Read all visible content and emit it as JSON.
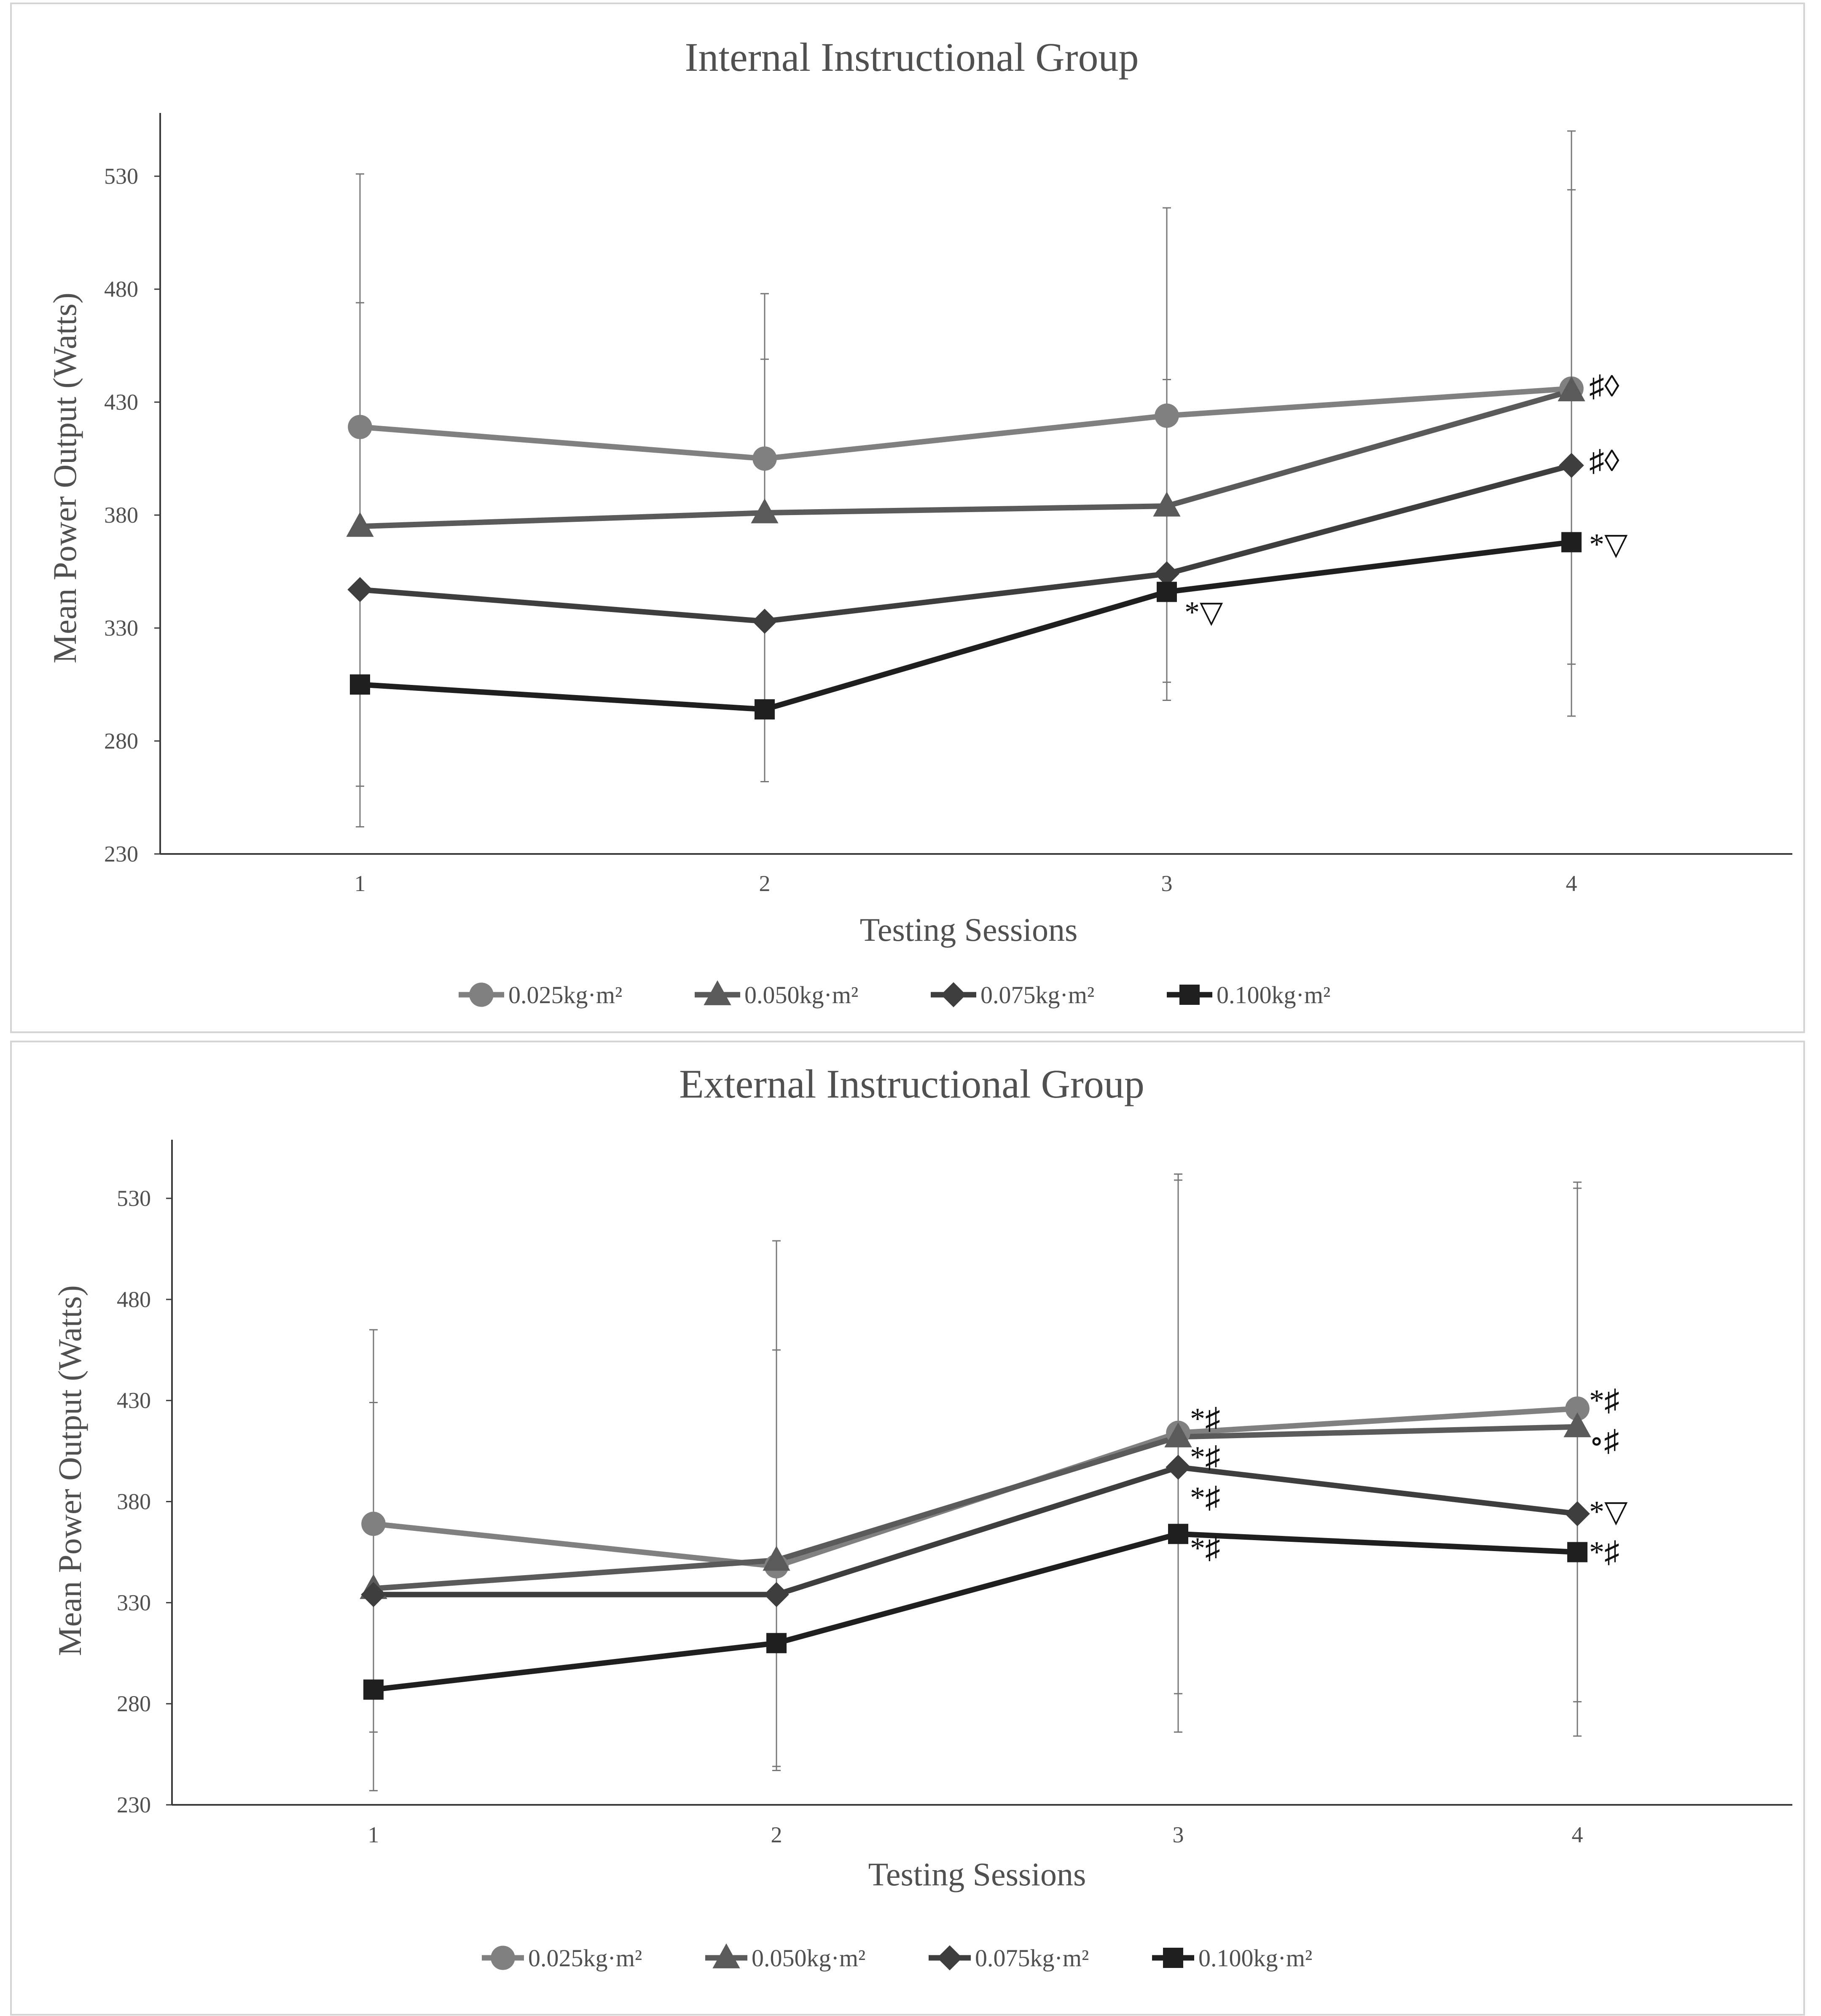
{
  "figure": {
    "colors": {
      "s1": "#808080",
      "s2": "#5a5a5a",
      "s3": "#3e3e3e",
      "s4": "#1f1f1f",
      "axis": "#3a3a3a",
      "text": "#505050",
      "border": "#d4d4d4"
    }
  },
  "chart_data": [
    {
      "type": "line",
      "title": "Internal Instructional Group",
      "xlabel": "Testing Sessions",
      "ylabel": "Mean Power Output (Watts)",
      "categories": [
        "1",
        "2",
        "3",
        "4"
      ],
      "yticks": [
        "230",
        "280",
        "330",
        "380",
        "430",
        "480",
        "530"
      ],
      "ylim": [
        230,
        558
      ],
      "legend_position": "bottom",
      "series": [
        {
          "name": "0.025kg·m²",
          "marker": "circle",
          "values": [
            419,
            405,
            424,
            436
          ],
          "err_upper": [
            531,
            478,
            516,
            550
          ],
          "err_lower": [
            null,
            null,
            306,
            314
          ]
        },
        {
          "name": "0.050kg·m²",
          "marker": "triangle",
          "values": [
            375,
            381,
            384,
            435
          ],
          "err_upper": [
            474,
            449,
            440,
            524
          ],
          "err_lower": [
            null,
            null,
            null,
            null
          ]
        },
        {
          "name": "0.075kg·m²",
          "marker": "diamond",
          "values": [
            347,
            333,
            354,
            402
          ],
          "err_upper": [
            null,
            null,
            null,
            null
          ],
          "err_lower": [
            260,
            262,
            298,
            291
          ]
        },
        {
          "name": "0.100kg·m²",
          "marker": "square",
          "values": [
            305,
            294,
            346,
            368
          ],
          "err_upper": [
            null,
            null,
            null,
            null
          ],
          "err_lower": [
            242,
            null,
            null,
            null
          ]
        }
      ],
      "annotations": [
        {
          "session": "4",
          "value": 437,
          "text": "♯◊"
        },
        {
          "session": "4",
          "value": 404,
          "text": "♯◊"
        },
        {
          "session": "4",
          "value": 367,
          "text": "*▽"
        },
        {
          "session": "3",
          "value": 337,
          "text": "*▽"
        }
      ]
    },
    {
      "type": "line",
      "title": "External Instructional Group",
      "xlabel": "Testing Sessions",
      "ylabel": "Mean Power Output (Watts)",
      "categories": [
        "1",
        "2",
        "3",
        "4"
      ],
      "yticks": [
        "230",
        "280",
        "330",
        "380",
        "430",
        "480",
        "530"
      ],
      "ylim": [
        230,
        559
      ],
      "legend_position": "bottom",
      "series": [
        {
          "name": "0.025kg·m²",
          "marker": "circle",
          "values": [
            369,
            348,
            414,
            426
          ],
          "err_upper": [
            465,
            509,
            542,
            538
          ],
          "err_lower": [
            266,
            247,
            285,
            281
          ]
        },
        {
          "name": "0.050kg·m²",
          "marker": "triangle",
          "values": [
            337,
            351,
            412,
            417
          ],
          "err_upper": [
            429,
            455,
            539,
            535
          ],
          "err_lower": [
            null,
            249,
            null,
            null
          ]
        },
        {
          "name": "0.075kg·m²",
          "marker": "diamond",
          "values": [
            334,
            334,
            397,
            374
          ],
          "err_upper": [
            null,
            null,
            null,
            null
          ],
          "err_lower": [
            null,
            null,
            266,
            264
          ]
        },
        {
          "name": "0.100kg·m²",
          "marker": "square",
          "values": [
            287,
            310,
            364,
            355
          ],
          "err_upper": [
            null,
            null,
            null,
            null
          ],
          "err_lower": [
            237,
            null,
            null,
            null
          ]
        }
      ],
      "annotations": [
        {
          "session": "3",
          "value": 421,
          "text": "*♯"
        },
        {
          "session": "4",
          "value": 430,
          "text": "*♯"
        },
        {
          "session": "4",
          "value": 410,
          "text": "∘♯"
        },
        {
          "session": "3",
          "value": 402,
          "text": "*♯"
        },
        {
          "session": "3",
          "value": 382,
          "text": "*♯"
        },
        {
          "session": "4",
          "value": 375,
          "text": "*▽"
        },
        {
          "session": "3",
          "value": 357,
          "text": "*♯"
        },
        {
          "session": "4",
          "value": 355,
          "text": "*♯"
        }
      ]
    }
  ]
}
